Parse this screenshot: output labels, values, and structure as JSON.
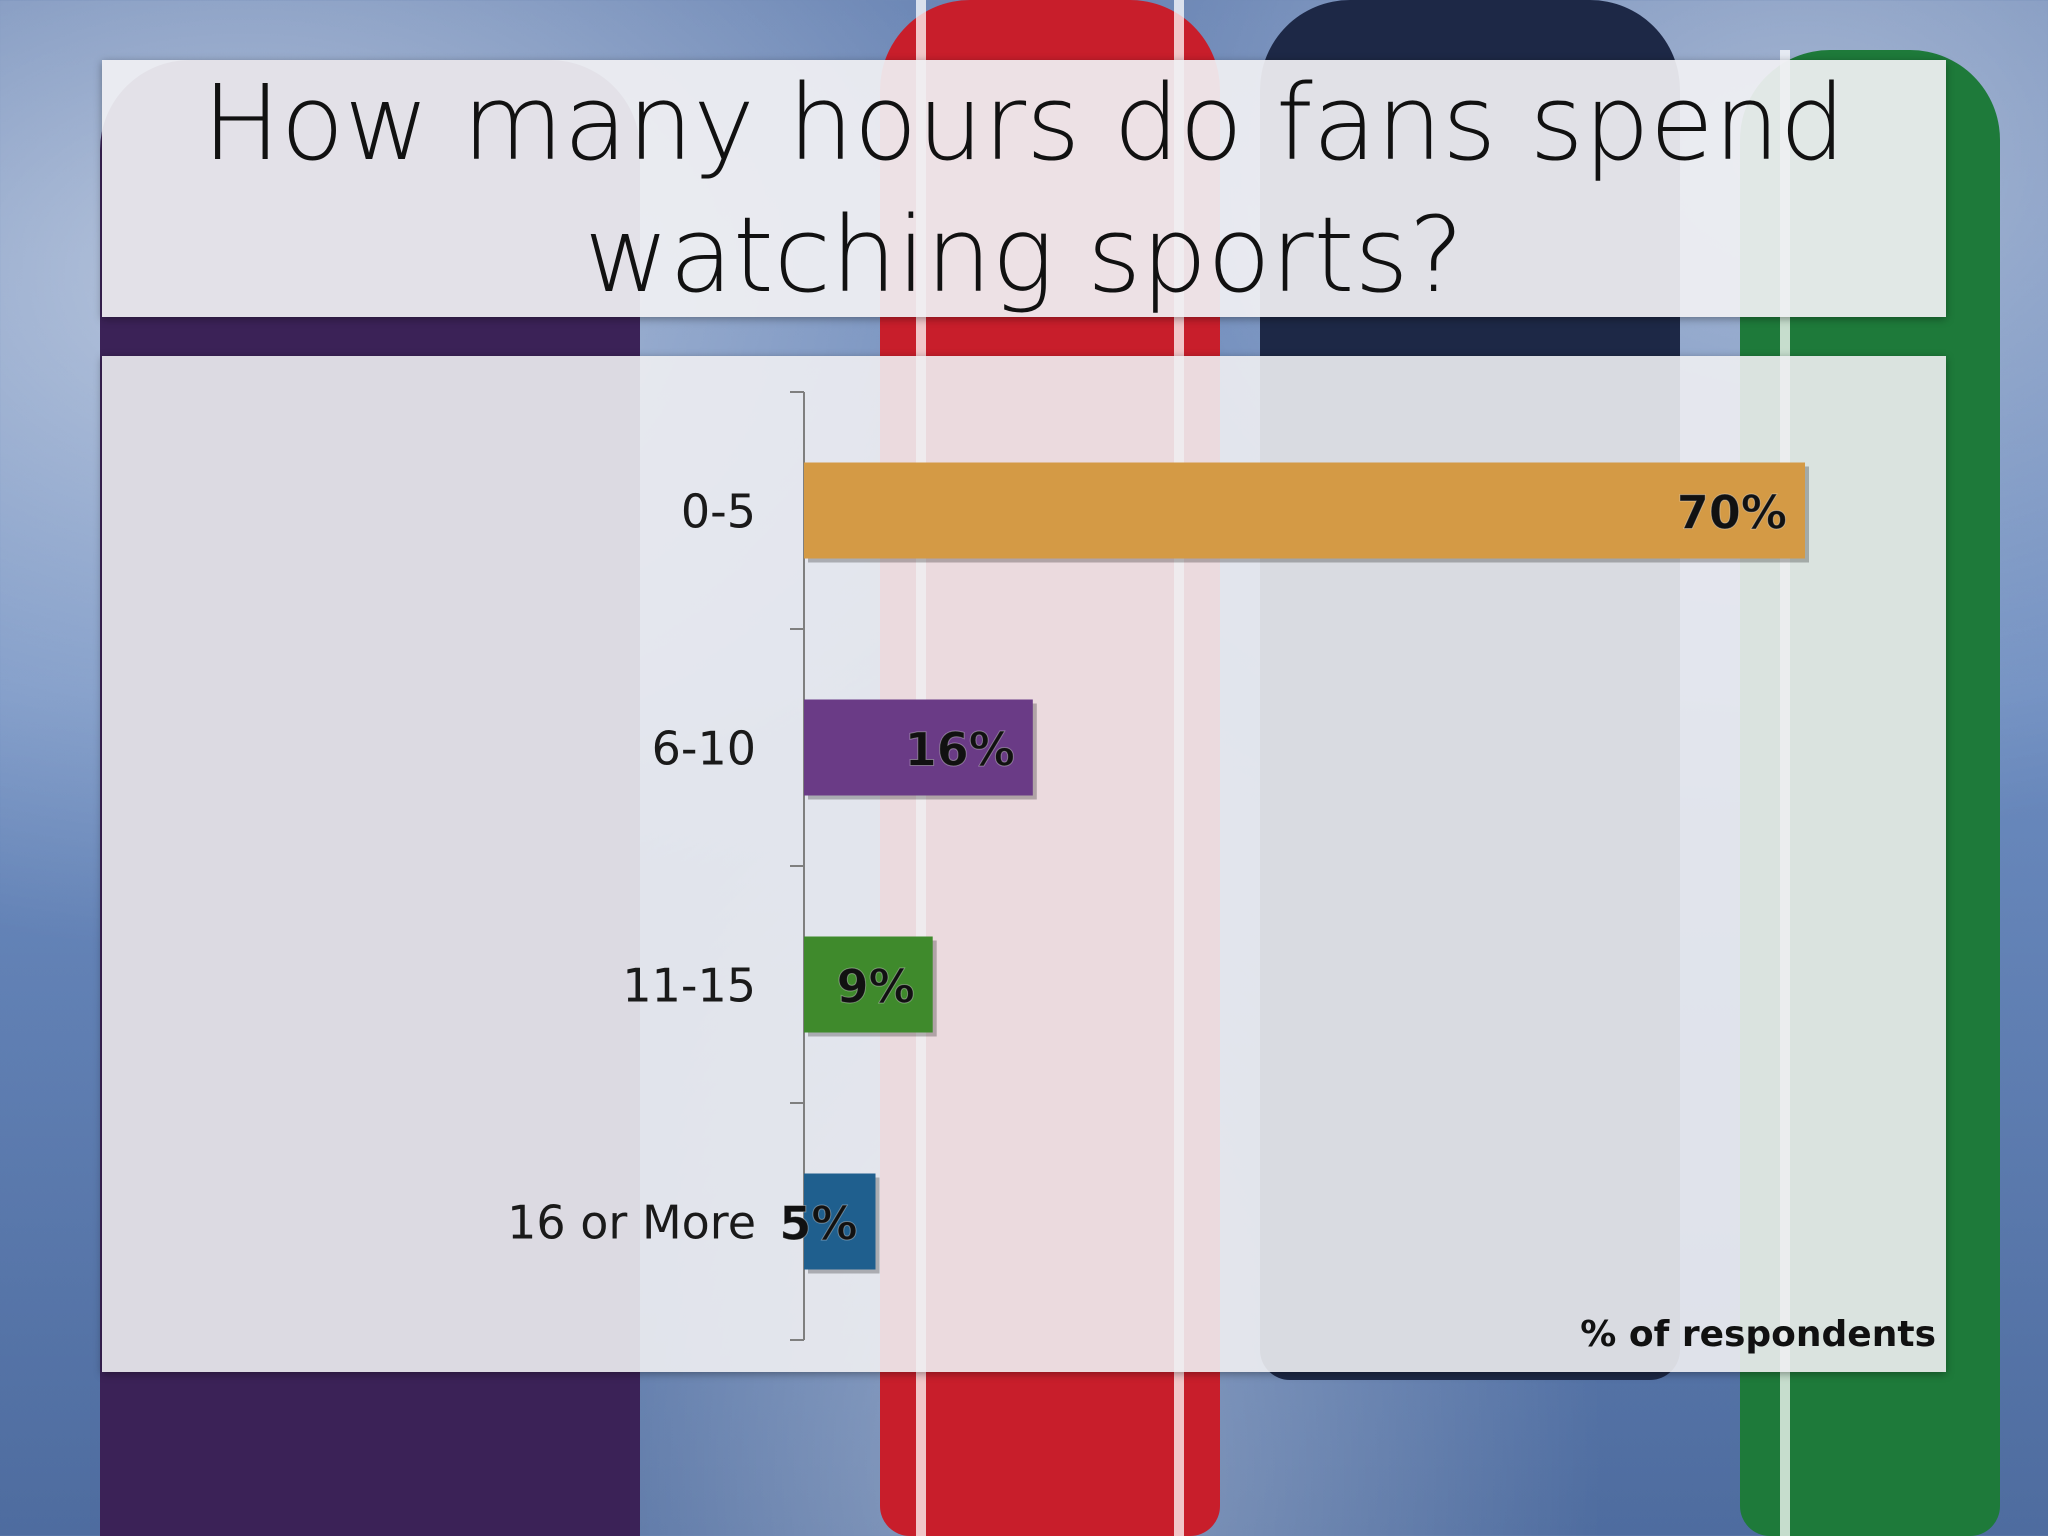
{
  "slide": {
    "title_line1": "How many hours do fans spend",
    "title_line2": "watching sports?"
  },
  "chart_data": {
    "type": "bar",
    "orientation": "horizontal",
    "categories": [
      "0-5",
      "6-10",
      "11-15",
      "16 or More"
    ],
    "values": [
      70,
      16,
      9,
      5
    ],
    "data_labels": [
      "70%",
      "16%",
      "9%",
      "5%"
    ],
    "colors": [
      "#d49a45",
      "#6a3b86",
      "#3f8a2c",
      "#1f5f8e"
    ],
    "xlabel": "% of respondents",
    "xlim": [
      0,
      100
    ],
    "grid": false,
    "legend": "none"
  }
}
